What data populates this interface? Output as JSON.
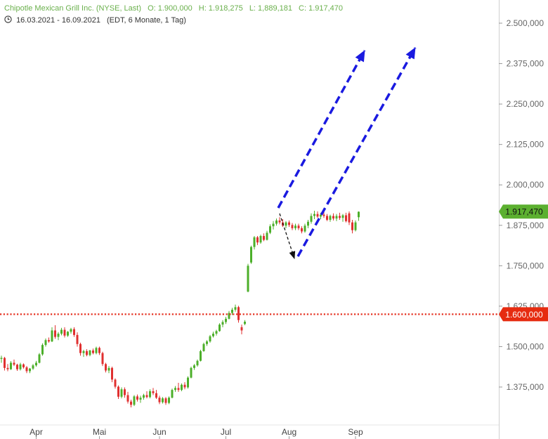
{
  "header": {
    "title": "Chipotle Mexican Grill Inc. (NYSE, Last)",
    "open": "O: 1.900,000",
    "high": "H: 1.918,275",
    "low": "L: 1,889,181",
    "close": "C: 1.917,470",
    "range": "16.03.2021 - 16.09.2021",
    "meta": "(EDT, 6 Monate, 1 Tag)"
  },
  "colors": {
    "up": "#4caf2a",
    "down": "#e03030",
    "header_green": "#6ab04c",
    "last_badge": "#5cb030",
    "level_line": "#e53020",
    "arrow_blue": "#1a1ae0",
    "arrow_black": "#111111"
  },
  "chart_data": {
    "type": "candlestick",
    "ylim": [
      1300,
      2540
    ],
    "y_ticks": [
      "2.500,000",
      "2.375,000",
      "2.250,000",
      "2.125,000",
      "2.000,000",
      "1.875,000",
      "1.750,000",
      "1.625,000",
      "1.500,000",
      "1.375,000"
    ],
    "y_tick_values": [
      2500,
      2375,
      2250,
      2125,
      2000,
      1875,
      1750,
      1625,
      1500,
      1375
    ],
    "x_ticks": [
      "Apr",
      "Mai",
      "Jun",
      "Jul",
      "Aug",
      "Sep"
    ],
    "x_tick_index": [
      11,
      31,
      50,
      71,
      91,
      112
    ],
    "last_price": 1917.47,
    "last_price_label": "1.917,470",
    "level": 1600,
    "level_label": "1.600,000",
    "candles": [
      [
        1462,
        1472,
        1450,
        1465
      ],
      [
        1465,
        1468,
        1426,
        1434
      ],
      [
        1434,
        1446,
        1424,
        1430
      ],
      [
        1430,
        1455,
        1428,
        1450
      ],
      [
        1450,
        1460,
        1440,
        1444
      ],
      [
        1444,
        1447,
        1425,
        1430
      ],
      [
        1430,
        1450,
        1426,
        1445
      ],
      [
        1445,
        1448,
        1432,
        1436
      ],
      [
        1436,
        1440,
        1418,
        1424
      ],
      [
        1424,
        1434,
        1418,
        1432
      ],
      [
        1432,
        1446,
        1428,
        1442
      ],
      [
        1442,
        1456,
        1438,
        1450
      ],
      [
        1450,
        1480,
        1448,
        1476
      ],
      [
        1476,
        1510,
        1472,
        1505
      ],
      [
        1505,
        1525,
        1500,
        1520
      ],
      [
        1520,
        1528,
        1512,
        1516
      ],
      [
        1516,
        1560,
        1514,
        1550
      ],
      [
        1550,
        1566,
        1524,
        1530
      ],
      [
        1530,
        1545,
        1520,
        1540
      ],
      [
        1540,
        1558,
        1535,
        1552
      ],
      [
        1552,
        1560,
        1528,
        1534
      ],
      [
        1534,
        1548,
        1530,
        1546
      ],
      [
        1546,
        1558,
        1540,
        1554
      ],
      [
        1554,
        1560,
        1530,
        1536
      ],
      [
        1536,
        1544,
        1500,
        1508
      ],
      [
        1508,
        1512,
        1472,
        1480
      ],
      [
        1480,
        1490,
        1468,
        1486
      ],
      [
        1486,
        1492,
        1470,
        1474
      ],
      [
        1474,
        1490,
        1470,
        1488
      ],
      [
        1488,
        1494,
        1476,
        1480
      ],
      [
        1480,
        1500,
        1476,
        1496
      ],
      [
        1496,
        1500,
        1474,
        1480
      ],
      [
        1480,
        1484,
        1440,
        1446
      ],
      [
        1446,
        1450,
        1420,
        1426
      ],
      [
        1426,
        1440,
        1418,
        1434
      ],
      [
        1434,
        1438,
        1390,
        1398
      ],
      [
        1398,
        1402,
        1370,
        1376
      ],
      [
        1376,
        1380,
        1338,
        1345
      ],
      [
        1345,
        1374,
        1340,
        1368
      ],
      [
        1368,
        1374,
        1342,
        1350
      ],
      [
        1350,
        1360,
        1324,
        1330
      ],
      [
        1330,
        1336,
        1312,
        1320
      ],
      [
        1320,
        1350,
        1316,
        1346
      ],
      [
        1346,
        1352,
        1330,
        1336
      ],
      [
        1336,
        1348,
        1326,
        1342
      ],
      [
        1342,
        1354,
        1336,
        1350
      ],
      [
        1350,
        1362,
        1340,
        1344
      ],
      [
        1344,
        1368,
        1340,
        1362
      ],
      [
        1362,
        1372,
        1350,
        1356
      ],
      [
        1356,
        1366,
        1338,
        1342
      ],
      [
        1342,
        1348,
        1322,
        1328
      ],
      [
        1328,
        1344,
        1324,
        1340
      ],
      [
        1340,
        1344,
        1320,
        1326
      ],
      [
        1326,
        1346,
        1322,
        1342
      ],
      [
        1342,
        1370,
        1340,
        1366
      ],
      [
        1366,
        1378,
        1360,
        1372
      ],
      [
        1372,
        1388,
        1360,
        1366
      ],
      [
        1366,
        1386,
        1362,
        1382
      ],
      [
        1382,
        1390,
        1368,
        1374
      ],
      [
        1374,
        1408,
        1370,
        1404
      ],
      [
        1404,
        1438,
        1402,
        1434
      ],
      [
        1434,
        1446,
        1428,
        1442
      ],
      [
        1442,
        1460,
        1438,
        1456
      ],
      [
        1456,
        1490,
        1454,
        1486
      ],
      [
        1486,
        1512,
        1484,
        1508
      ],
      [
        1508,
        1520,
        1502,
        1516
      ],
      [
        1516,
        1536,
        1512,
        1532
      ],
      [
        1532,
        1546,
        1528,
        1540
      ],
      [
        1540,
        1552,
        1534,
        1548
      ],
      [
        1548,
        1572,
        1546,
        1568
      ],
      [
        1568,
        1582,
        1560,
        1576
      ],
      [
        1576,
        1592,
        1570,
        1586
      ],
      [
        1586,
        1610,
        1584,
        1604
      ],
      [
        1604,
        1620,
        1598,
        1614
      ],
      [
        1614,
        1630,
        1608,
        1622
      ],
      [
        1622,
        1626,
        1574,
        1582
      ],
      [
        1560,
        1568,
        1538,
        1550
      ],
      [
        1570,
        1582,
        1566,
        1577
      ],
      [
        1670,
        1756,
        1668,
        1750
      ],
      [
        1760,
        1812,
        1756,
        1808
      ],
      [
        1808,
        1842,
        1800,
        1838
      ],
      [
        1838,
        1842,
        1814,
        1822
      ],
      [
        1822,
        1846,
        1818,
        1842
      ],
      [
        1842,
        1850,
        1826,
        1830
      ],
      [
        1830,
        1858,
        1828,
        1852
      ],
      [
        1852,
        1878,
        1848,
        1872
      ],
      [
        1872,
        1888,
        1862,
        1880
      ],
      [
        1880,
        1896,
        1874,
        1890
      ],
      [
        1890,
        1900,
        1878,
        1884
      ],
      [
        1884,
        1894,
        1870,
        1874
      ],
      [
        1874,
        1888,
        1866,
        1884
      ],
      [
        1884,
        1890,
        1870,
        1876
      ],
      [
        1876,
        1882,
        1860,
        1866
      ],
      [
        1866,
        1880,
        1860,
        1874
      ],
      [
        1874,
        1880,
        1860,
        1866
      ],
      [
        1866,
        1872,
        1850,
        1856
      ],
      [
        1856,
        1880,
        1852,
        1874
      ],
      [
        1874,
        1892,
        1866,
        1886
      ],
      [
        1886,
        1912,
        1880,
        1904
      ],
      [
        1904,
        1920,
        1894,
        1910
      ],
      [
        1910,
        1918,
        1898,
        1902
      ],
      [
        1902,
        1914,
        1894,
        1908
      ],
      [
        1908,
        1916,
        1898,
        1904
      ],
      [
        1904,
        1910,
        1888,
        1892
      ],
      [
        1892,
        1908,
        1886,
        1904
      ],
      [
        1904,
        1912,
        1890,
        1896
      ],
      [
        1896,
        1910,
        1888,
        1904
      ],
      [
        1904,
        1914,
        1892,
        1898
      ],
      [
        1898,
        1910,
        1886,
        1906
      ],
      [
        1906,
        1914,
        1884,
        1888
      ],
      [
        1912,
        1918,
        1876,
        1884
      ],
      [
        1884,
        1892,
        1850,
        1860
      ],
      [
        1860,
        1890,
        1856,
        1884
      ],
      [
        1900,
        1918,
        1889,
        1917
      ]
    ]
  }
}
